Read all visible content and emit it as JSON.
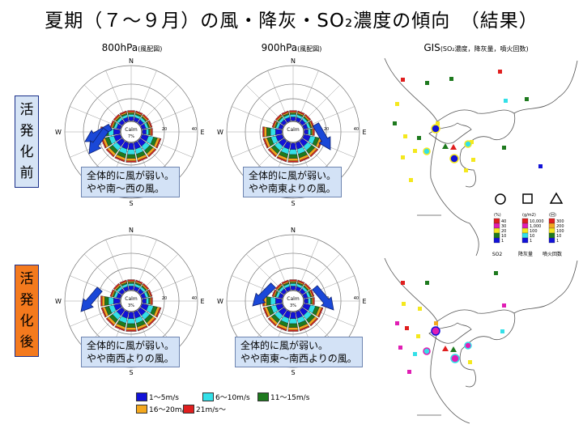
{
  "title": "夏期（７～９月）の風・降灰・SO₂濃度の傾向　（結果）",
  "headers": {
    "col1": {
      "main": "800hPa",
      "sub": "(風配図)"
    },
    "col2": {
      "main": "900hPa",
      "sub": "(風配図)"
    },
    "col3": {
      "main": "GIS",
      "sub": "(SO₂濃度，降灰量，噴火回数)"
    }
  },
  "side_labels": {
    "before": "活発化前",
    "after": "活発化後"
  },
  "roses": [
    {
      "id": "r1",
      "calm": "Calm",
      "pct": "7%"
    },
    {
      "id": "r2",
      "calm": "Calm",
      "pct": ""
    },
    {
      "id": "r3",
      "calm": "Calm",
      "pct": "3%"
    },
    {
      "id": "r4",
      "calm": "Calm",
      "pct": "3%"
    }
  ],
  "compass": {
    "n": "N",
    "s": "S",
    "e": "E",
    "w": "W"
  },
  "ring_labels": [
    "20",
    "40"
  ],
  "notes": {
    "r1": [
      "全体的に風が弱い。",
      "やや南～西の風。"
    ],
    "r2": [
      "全体的に風が弱い。",
      "やや南東よりの風。"
    ],
    "r3": [
      "全体的に風が弱い。",
      "やや南西よりの風。"
    ],
    "r4": [
      "全体的に風が弱い。",
      "やや南東～南西よりの風。"
    ]
  },
  "speed_legend": [
    {
      "label": "1～5m/s",
      "color": "#1212d8"
    },
    {
      "label": "6～10m/s",
      "color": "#33e0e8"
    },
    {
      "label": "11～15m/s",
      "color": "#1e7a1e"
    },
    {
      "label": "16～20m/s",
      "color": "#f4a81e"
    },
    {
      "label": "21m/s～",
      "color": "#e01e1e"
    }
  ],
  "gis_legend": {
    "so2": {
      "unit": "(%)",
      "levels": [
        "40",
        "30",
        "20",
        "10",
        "1"
      ],
      "label": "SO2"
    },
    "ash": {
      "unit": "(g/m2)",
      "levels": [
        "10,000",
        "1,000",
        "100",
        "10",
        "1"
      ],
      "label": "降灰量"
    },
    "eruption": {
      "unit": "(回)",
      "levels": [
        "300",
        "200",
        "100",
        "10",
        "1"
      ],
      "label": "噴火回数"
    }
  },
  "colors": {
    "note_bg": "#d3e2f6",
    "side_before": "#d6e4f5",
    "side_after": "#f47a1e",
    "accent": "#1a2f8a"
  }
}
